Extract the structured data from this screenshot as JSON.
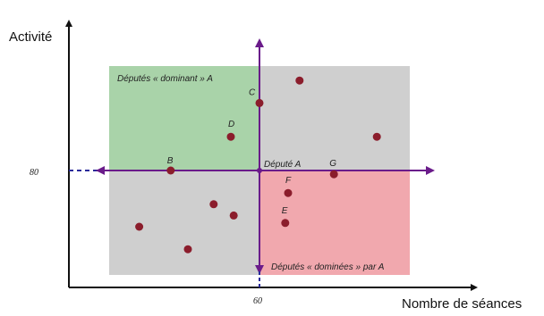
{
  "chart_data": {
    "type": "scatter",
    "xlabel": "Nombre de séances",
    "ylabel": "Activité",
    "x_tick_label": "60",
    "y_tick_label": "80",
    "reference": {
      "label": "Député A",
      "x": 60,
      "y": 80
    },
    "regions": [
      {
        "label": "Députés « dominant » A",
        "color": "#a9d3a9"
      },
      {
        "label": "Députés « dominées » par A",
        "color": "#f1a8ae"
      },
      {
        "label": "",
        "color": "#cfcfcf"
      }
    ],
    "points": [
      {
        "label": "B",
        "x": 29,
        "y": 80
      },
      {
        "label": "C",
        "x": 60,
        "y": 98
      },
      {
        "label": "D",
        "x": 50,
        "y": 89
      },
      {
        "label": "E",
        "x": 69,
        "y": 66
      },
      {
        "label": "F",
        "x": 70,
        "y": 74
      },
      {
        "label": "G",
        "x": 86,
        "y": 79
      },
      {
        "label": "",
        "x": 74,
        "y": 104
      },
      {
        "label": "",
        "x": 101,
        "y": 89
      },
      {
        "label": "",
        "x": 44,
        "y": 71
      },
      {
        "label": "",
        "x": 51,
        "y": 68
      },
      {
        "label": "",
        "x": 18,
        "y": 65
      },
      {
        "label": "",
        "x": 35,
        "y": 59
      }
    ],
    "colors": {
      "point": "#8b1d2c",
      "axes": "#6a1b8a",
      "frame_axes": "#111111",
      "dashed": "#2a2a9a"
    }
  }
}
